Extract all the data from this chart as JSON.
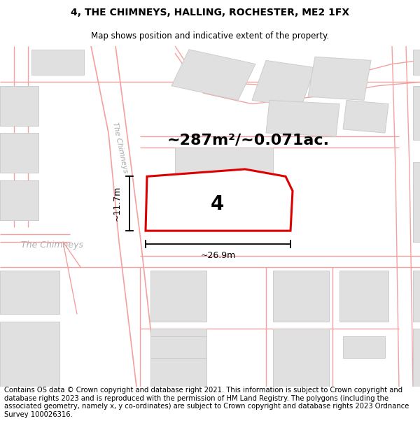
{
  "title": "4, THE CHIMNEYS, HALLING, ROCHESTER, ME2 1FX",
  "subtitle": "Map shows position and indicative extent of the property.",
  "area_text": "~287m²/~0.071ac.",
  "property_number": "4",
  "dim_width": "~26.9m",
  "dim_height": "~11.7m",
  "footer": "Contains OS data © Crown copyright and database right 2021. This information is subject to Crown copyright and database rights 2023 and is reproduced with the permission of HM Land Registry. The polygons (including the associated geometry, namely x, y co-ordinates) are subject to Crown copyright and database rights 2023 Ordnance Survey 100026316.",
  "bg_color": "#ffffff",
  "map_bg": "#ffffff",
  "property_fill": "#f0f0f0",
  "property_edge": "#dd0000",
  "road_stroke": "#f5a0a0",
  "building_fill": "#e0e0e0",
  "building_edge": "#cccccc",
  "road_label_color": "#aaaaaa",
  "chimneys_label_color": "#b0b0b0",
  "title_fontsize": 10,
  "subtitle_fontsize": 8.5,
  "footer_fontsize": 7.2,
  "area_fontsize": 16,
  "num_fontsize": 20,
  "dim_fontsize": 9
}
